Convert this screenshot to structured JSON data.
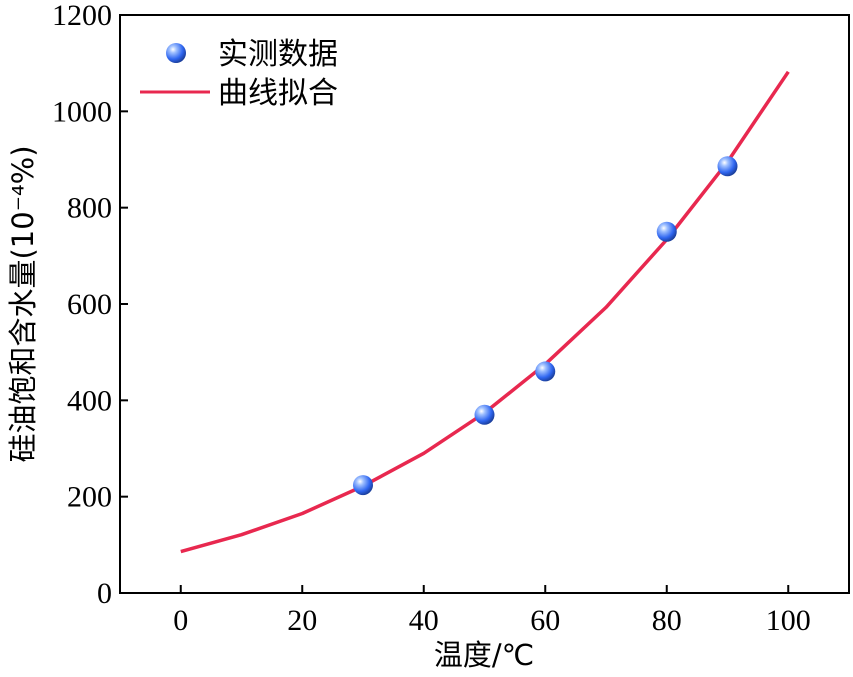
{
  "chart_data": {
    "type": "scatter",
    "xlabel": "温度/℃",
    "ylabel": "硅油饱和含水量(10⁻⁴%)",
    "xlim": [
      -10,
      110
    ],
    "ylim": [
      0,
      1200
    ],
    "x_ticks": [
      "0",
      "20",
      "40",
      "60",
      "80",
      "100"
    ],
    "y_ticks": [
      "0",
      "200",
      "400",
      "600",
      "800",
      "1000",
      "1200"
    ],
    "grid": false,
    "legend_position": "top-left",
    "series": [
      {
        "name": "实测数据",
        "kind": "scatter",
        "color": "#3a6ff2",
        "points": [
          {
            "x": 30,
            "y": 224
          },
          {
            "x": 50,
            "y": 370
          },
          {
            "x": 60,
            "y": 460
          },
          {
            "x": 80,
            "y": 750
          },
          {
            "x": 90,
            "y": 886
          }
        ]
      },
      {
        "name": "曲线拟合",
        "kind": "line",
        "color": "#e8284f",
        "points": [
          {
            "x": 0,
            "y": 86
          },
          {
            "x": 10,
            "y": 121
          },
          {
            "x": 20,
            "y": 165
          },
          {
            "x": 30,
            "y": 222
          },
          {
            "x": 40,
            "y": 290
          },
          {
            "x": 50,
            "y": 374
          },
          {
            "x": 60,
            "y": 475
          },
          {
            "x": 70,
            "y": 593
          },
          {
            "x": 80,
            "y": 734
          },
          {
            "x": 90,
            "y": 895
          },
          {
            "x": 100,
            "y": 1082
          }
        ]
      }
    ]
  }
}
